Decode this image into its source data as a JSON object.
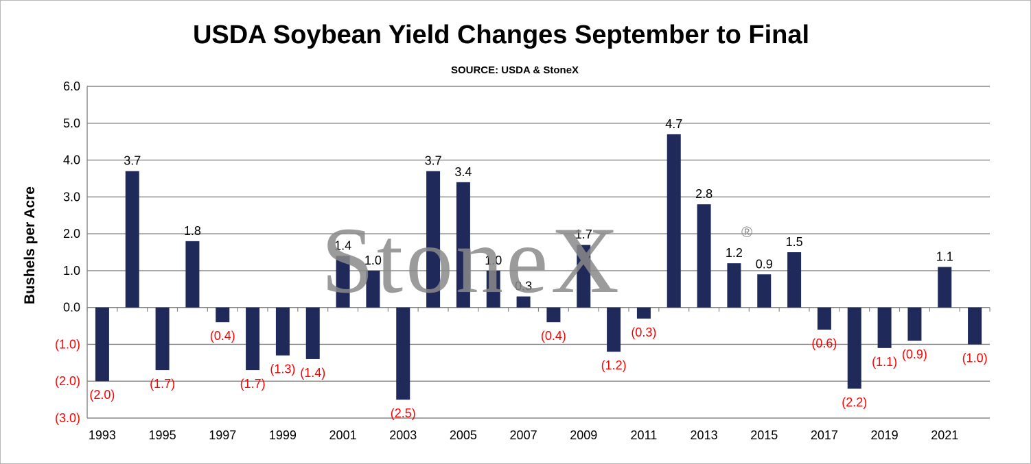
{
  "chart_data": {
    "type": "bar",
    "title": "USDA Soybean Yield Changes September to Final",
    "subtitle": "SOURCE: USDA & StoneX",
    "ylabel": "Bushels per Acre",
    "xlabel": "",
    "ylim": [
      -3.0,
      6.0
    ],
    "yticks": [
      "(3.0)",
      "(2.0)",
      "(1.0)",
      "0.0",
      "1.0",
      "2.0",
      "3.0",
      "4.0",
      "5.0",
      "6.0"
    ],
    "ytick_values": [
      -3,
      -2,
      -1,
      0,
      1,
      2,
      3,
      4,
      5,
      6
    ],
    "grid": true,
    "legend": false,
    "categories": [
      "1993",
      "1994",
      "1995",
      "1996",
      "1997",
      "1998",
      "1999",
      "2000",
      "2001",
      "2002",
      "2003",
      "2004",
      "2005",
      "2006",
      "2007",
      "2008",
      "2009",
      "2010",
      "2011",
      "2012",
      "2013",
      "2014",
      "2015",
      "2016",
      "2017",
      "2018",
      "2019",
      "2020",
      "2021",
      "2022"
    ],
    "xtick_labels": [
      "1993",
      "1995",
      "1997",
      "1999",
      "2001",
      "2003",
      "2005",
      "2007",
      "2009",
      "2011",
      "2013",
      "2015",
      "2017",
      "2019",
      "2021"
    ],
    "values": [
      -2.0,
      3.7,
      -1.7,
      1.8,
      -0.4,
      -1.7,
      -1.3,
      -1.4,
      1.4,
      1.0,
      -2.5,
      3.7,
      3.4,
      1.0,
      0.3,
      -0.4,
      1.7,
      -1.2,
      -0.3,
      4.7,
      2.8,
      1.2,
      0.9,
      1.5,
      -0.6,
      -2.2,
      -1.1,
      -0.9,
      1.1,
      -1.0
    ],
    "data_labels": [
      "(2.0)",
      "3.7",
      "(1.7)",
      "1.8",
      "(0.4)",
      "(1.7)",
      "(1.3)",
      "(1.4)",
      "1.4",
      "1.0",
      "(2.5)",
      "3.7",
      "3.4",
      "1.0",
      "0.3",
      "(0.4)",
      "1.7",
      "(1.2)",
      "(0.3)",
      "4.7",
      "2.8",
      "1.2",
      "0.9",
      "1.5",
      "(0.6)",
      "(2.2)",
      "(1.1)",
      "(0.9)",
      "1.1",
      "(1.0)"
    ]
  },
  "colors": {
    "bar": "#1f2a5a",
    "positive_label": "#000000",
    "negative_label": "#ff0000",
    "grid": "#868686"
  },
  "watermark": {
    "text": "StoneX",
    "mark": "®"
  }
}
